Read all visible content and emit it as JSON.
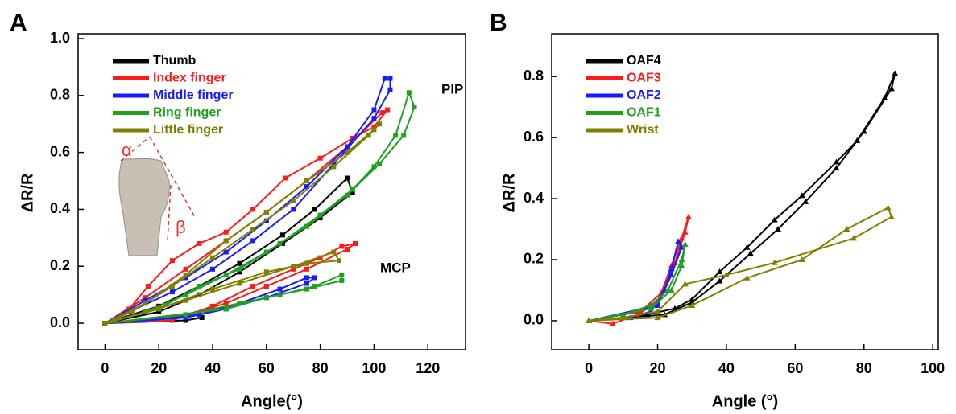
{
  "chart_data": [
    {
      "type": "line",
      "panel": "A",
      "marker": "square",
      "xlabel": "Angle(°)",
      "ylabel": "ΔR/R",
      "annotations": [
        "PIP",
        "MCP",
        "α",
        "β"
      ],
      "xlim": [
        -10,
        134
      ],
      "ylim": [
        -0.093,
        1.017
      ],
      "xticks": [
        0,
        20,
        40,
        60,
        80,
        100,
        120
      ],
      "yticks": [
        {
          "value": 0,
          "label": "0.0"
        },
        {
          "value": 0.2,
          "label": "0.2"
        },
        {
          "value": 0.4,
          "label": "0.4"
        },
        {
          "value": 0.6,
          "label": "0.6"
        },
        {
          "value": 0.8,
          "label": "0.8"
        },
        {
          "value": 1,
          "label": "1.0"
        }
      ],
      "series": [
        {
          "name": "Thumb",
          "color": "#000000",
          "curves": [
            {
              "x": [
                0,
                20,
                35,
                50,
                66,
                78,
                90,
                92,
                80,
                66,
                50,
                35,
                20,
                0
              ],
              "values": [
                0,
                0.06,
                0.13,
                0.21,
                0.31,
                0.4,
                0.51,
                0.46,
                0.37,
                0.28,
                0.18,
                0.1,
                0.04,
                0
              ]
            },
            {
              "x": [
                0,
                30,
                36
              ],
              "values": [
                0,
                0.01,
                0.02
              ]
            }
          ]
        },
        {
          "name": "Index finger",
          "color": "#ff1a1a",
          "curves": [
            {
              "x": [
                0,
                9,
                16,
                25,
                35,
                45,
                55,
                67,
                80,
                92,
                100,
                105,
                103,
                90,
                75,
                60,
                45,
                30,
                15,
                0
              ],
              "values": [
                0,
                0.05,
                0.13,
                0.22,
                0.28,
                0.32,
                0.4,
                0.51,
                0.58,
                0.65,
                0.69,
                0.75,
                0.74,
                0.62,
                0.5,
                0.39,
                0.29,
                0.19,
                0.09,
                0
              ]
            },
            {
              "x": [
                0,
                25,
                40,
                55,
                70,
                80,
                88,
                93,
                90,
                75,
                60,
                45,
                30,
                0
              ],
              "values": [
                0,
                0.01,
                0.06,
                0.13,
                0.19,
                0.23,
                0.27,
                0.28,
                0.26,
                0.19,
                0.13,
                0.07,
                0.03,
                0
              ]
            }
          ]
        },
        {
          "name": "Middle finger",
          "color": "#1a1aff",
          "curves": [
            {
              "x": [
                0,
                15,
                30,
                45,
                60,
                75,
                90,
                100,
                104,
                106,
                106,
                100,
                85,
                70,
                55,
                40,
                25,
                0
              ],
              "values": [
                0,
                0.08,
                0.16,
                0.25,
                0.36,
                0.48,
                0.62,
                0.75,
                0.86,
                0.86,
                0.82,
                0.72,
                0.56,
                0.4,
                0.29,
                0.19,
                0.11,
                0
              ]
            },
            {
              "x": [
                0,
                35,
                50,
                65,
                75,
                78,
                75,
                60,
                45,
                30,
                0
              ],
              "values": [
                0,
                0.03,
                0.07,
                0.12,
                0.16,
                0.16,
                0.14,
                0.09,
                0.05,
                0.02,
                0
              ]
            }
          ]
        },
        {
          "name": "Ring finger",
          "color": "#1fa01f",
          "curves": [
            {
              "x": [
                0,
                20,
                35,
                50,
                65,
                80,
                92,
                100,
                108,
                113,
                115,
                111,
                102,
                90,
                75,
                60,
                45,
                30,
                15,
                0
              ],
              "values": [
                0,
                0.05,
                0.13,
                0.19,
                0.28,
                0.38,
                0.47,
                0.55,
                0.66,
                0.81,
                0.76,
                0.66,
                0.56,
                0.45,
                0.34,
                0.25,
                0.17,
                0.1,
                0.04,
                0
              ]
            },
            {
              "x": [
                0,
                30,
                50,
                65,
                78,
                88,
                88,
                75,
                60,
                45,
                0
              ],
              "values": [
                0,
                0.03,
                0.07,
                0.1,
                0.13,
                0.17,
                0.15,
                0.12,
                0.09,
                0.05,
                0
              ]
            }
          ]
        },
        {
          "name": "Little finger",
          "color": "#808000",
          "curves": [
            {
              "x": [
                0,
                15,
                30,
                45,
                60,
                75,
                90,
                100,
                102,
                98,
                85,
                70,
                55,
                40,
                25,
                10,
                0
              ],
              "values": [
                0,
                0.07,
                0.17,
                0.29,
                0.39,
                0.5,
                0.6,
                0.68,
                0.7,
                0.66,
                0.55,
                0.43,
                0.33,
                0.23,
                0.13,
                0.04,
                0
              ]
            },
            {
              "x": [
                0,
                20,
                40,
                60,
                75,
                87,
                85,
                70,
                50,
                30,
                0
              ],
              "values": [
                0,
                0.05,
                0.12,
                0.18,
                0.21,
                0.22,
                0.25,
                0.2,
                0.14,
                0.08,
                0
              ]
            }
          ]
        }
      ]
    },
    {
      "type": "line",
      "panel": "B",
      "marker": "triangle",
      "xlabel": "Angle (°)",
      "ylabel": "ΔR/R",
      "xlim": [
        -10.8,
        101.6
      ],
      "ylim": [
        -0.095,
        0.94
      ],
      "xticks": [
        0,
        20,
        40,
        60,
        80,
        100
      ],
      "yticks": [
        {
          "value": 0,
          "label": "0.0"
        },
        {
          "value": 0.2,
          "label": "0.2"
        },
        {
          "value": 0.4,
          "label": "0.4"
        },
        {
          "value": 0.6,
          "label": "0.6"
        },
        {
          "value": 0.8,
          "label": "0.8"
        }
      ],
      "series": [
        {
          "name": "OAF4",
          "color": "#000000",
          "curves": [
            {
              "x": [
                0,
                10,
                17,
                25,
                30,
                38,
                46,
                54,
                62,
                72,
                78,
                86,
                89,
                88,
                80,
                72,
                63,
                55,
                47,
                38,
                30,
                22,
                0
              ],
              "values": [
                0,
                0.01,
                0.02,
                0.04,
                0.07,
                0.16,
                0.24,
                0.33,
                0.41,
                0.52,
                0.59,
                0.73,
                0.81,
                0.76,
                0.62,
                0.5,
                0.39,
                0.3,
                0.22,
                0.13,
                0.06,
                0.02,
                0
              ]
            }
          ]
        },
        {
          "name": "OAF3",
          "color": "#ff1a1a",
          "curves": [
            {
              "x": [
                0,
                7,
                14,
                20,
                24,
                27,
                29,
                28,
                25,
                21,
                15,
                0
              ],
              "values": [
                0,
                -0.01,
                0.02,
                0.06,
                0.18,
                0.27,
                0.34,
                0.29,
                0.19,
                0.09,
                0.03,
                0
              ]
            }
          ]
        },
        {
          "name": "OAF2",
          "color": "#1a1aff",
          "curves": [
            {
              "x": [
                0,
                12,
                18,
                22,
                24,
                26,
                27,
                24,
                20,
                0
              ],
              "values": [
                0,
                0.01,
                0.03,
                0.1,
                0.17,
                0.26,
                0.24,
                0.15,
                0.05,
                0
              ]
            }
          ]
        },
        {
          "name": "OAF1",
          "color": "#1fa01f",
          "curves": [
            {
              "x": [
                0,
                10,
                18,
                23,
                27,
                28,
                27,
                24,
                18,
                0
              ],
              "values": [
                0,
                0.02,
                0.05,
                0.1,
                0.2,
                0.25,
                0.18,
                0.1,
                0.04,
                0
              ]
            }
          ]
        },
        {
          "name": "Wrist",
          "color": "#808000",
          "curves": [
            {
              "x": [
                0,
                10,
                20,
                28,
                40,
                54,
                77,
                88,
                87,
                75,
                62,
                46,
                30,
                20,
                0
              ],
              "values": [
                0,
                0.01,
                0.03,
                0.12,
                0.15,
                0.19,
                0.27,
                0.34,
                0.37,
                0.3,
                0.2,
                0.14,
                0.05,
                0.01,
                0
              ]
            }
          ]
        }
      ]
    }
  ]
}
